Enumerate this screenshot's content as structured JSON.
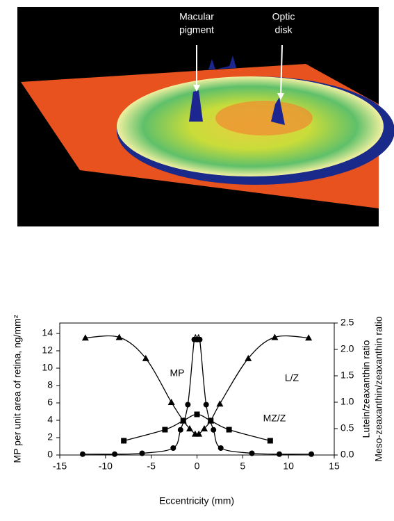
{
  "image": {
    "annotations": [
      {
        "lines": [
          "Macular",
          "pigment"
        ]
      },
      {
        "lines": [
          "Optic",
          "disk"
        ]
      }
    ]
  },
  "chart_data": {
    "type": "line",
    "x_label": "Eccentricity (mm)",
    "y_label": "MP per unit area of retina, ng/mm²",
    "y2_label": [
      "Lutein/zeaxanthin ratio",
      "Meso-zeaxanthin/zeaxanthin ratio"
    ],
    "xlim": [
      -15,
      15
    ],
    "xticks": [
      -15,
      -10,
      -5,
      0,
      5,
      10,
      15
    ],
    "ylim": [
      0,
      15.2
    ],
    "yticks": [
      0,
      2,
      4,
      6,
      8,
      10,
      12,
      14
    ],
    "y2lim": [
      0,
      2.5
    ],
    "y2ticks": [
      {
        "value": 0,
        "label": "0.0"
      },
      {
        "value": 0.5,
        "label": "0.5"
      },
      {
        "value": 1,
        "label": "1.0"
      },
      {
        "value": 1.5,
        "label": "1.5"
      },
      {
        "value": 2,
        "label": "2.0"
      },
      {
        "value": 2.5,
        "label": "2.5"
      }
    ],
    "series": [
      {
        "name": "MP",
        "color": "#000000",
        "marker": "circle",
        "x": [
          -12.5,
          -9,
          -6,
          -2.6,
          -1.8,
          -1,
          -0.3,
          0,
          0.3,
          1,
          1.8,
          2.6,
          6,
          9,
          12.5
        ],
        "values": [
          0.1,
          0.1,
          0.2,
          0.8,
          2.9,
          5.8,
          13.3,
          13.3,
          13.3,
          5.8,
          2.9,
          0.8,
          0.2,
          0.1,
          0.1
        ]
      },
      {
        "name": "L/Z",
        "color": "#000000",
        "marker": "triangle",
        "axis": "y2",
        "x": [
          -12.2,
          -8.5,
          -5.6,
          -2.8,
          -1.5,
          -0.8,
          -0.2,
          0.2,
          0.8,
          1.5,
          2.5,
          5.6,
          8.5,
          12.2
        ],
        "values": [
          2.22,
          2.23,
          1.83,
          1.0,
          0.65,
          0.5,
          0.4,
          0.4,
          0.5,
          0.65,
          0.97,
          1.83,
          2.23,
          2.22
        ]
      },
      {
        "name": "MZ/Z",
        "color": "#000000",
        "marker": "square",
        "axis": "y2",
        "x": [
          -8,
          -3.5,
          -1.5,
          0,
          1.5,
          3.5,
          8
        ],
        "values": [
          0.27,
          0.48,
          0.65,
          0.77,
          0.65,
          0.48,
          0.27
        ]
      }
    ]
  }
}
